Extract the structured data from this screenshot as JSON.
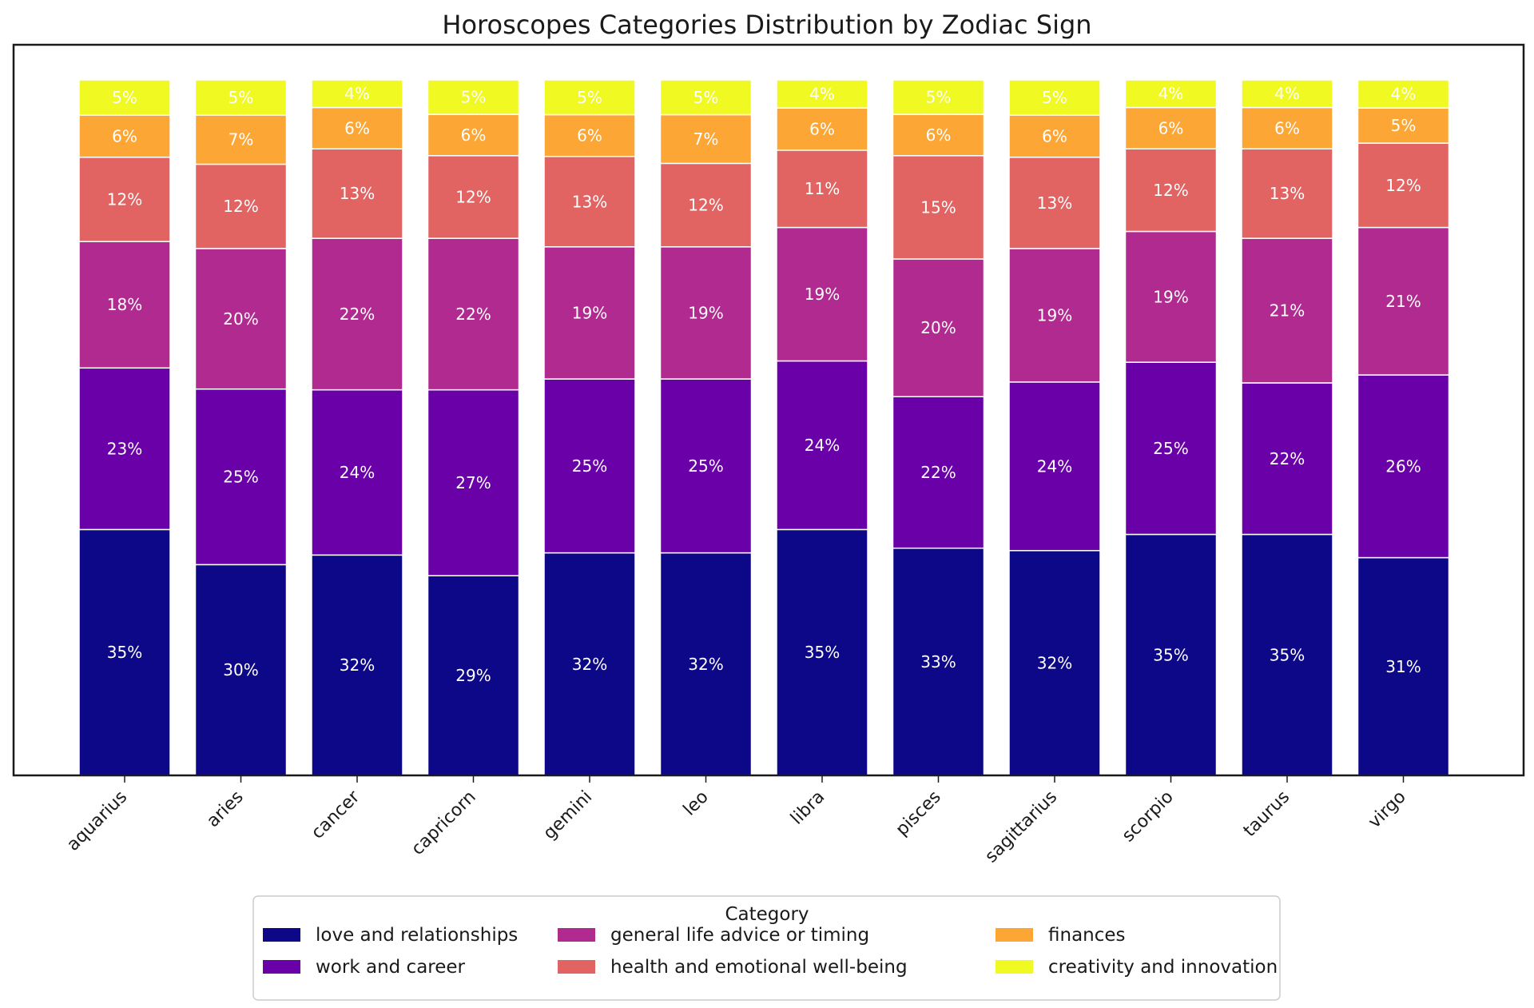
{
  "chart_data": {
    "type": "bar",
    "stacked": true,
    "title": "Horoscopes Categories Distribution by Zodiac Sign",
    "xlabel": "",
    "ylabel": "",
    "ylim": [
      0,
      100
    ],
    "legend_title": "Category",
    "legend_position": "bottom-center",
    "categories": [
      "aquarius",
      "aries",
      "cancer",
      "capricorn",
      "gemini",
      "leo",
      "libra",
      "pisces",
      "sagittarius",
      "scorpio",
      "taurus",
      "virgo"
    ],
    "series": [
      {
        "name": "love and relationships",
        "color": "#0d0887",
        "values": [
          35,
          30,
          32,
          29,
          32,
          32,
          35,
          33,
          32,
          35,
          35,
          31
        ]
      },
      {
        "name": "work and career",
        "color": "#6a00a8",
        "values": [
          23,
          25,
          24,
          27,
          25,
          25,
          24,
          22,
          24,
          25,
          22,
          26
        ]
      },
      {
        "name": "general life advice or timing",
        "color": "#b12a90",
        "values": [
          18,
          20,
          22,
          22,
          19,
          19,
          19,
          20,
          19,
          19,
          21,
          21
        ]
      },
      {
        "name": "health and emotional well-being",
        "color": "#e16462",
        "values": [
          12,
          12,
          13,
          12,
          13,
          12,
          11,
          15,
          13,
          12,
          13,
          12
        ]
      },
      {
        "name": "finances",
        "color": "#fca636",
        "values": [
          6,
          7,
          6,
          6,
          6,
          7,
          6,
          6,
          6,
          6,
          6,
          5
        ]
      },
      {
        "name": "creativity and innovation",
        "color": "#f0f921",
        "values": [
          5,
          5,
          4,
          5,
          5,
          5,
          4,
          5,
          5,
          4,
          4,
          4
        ]
      }
    ],
    "value_label_format": "{v}%"
  }
}
